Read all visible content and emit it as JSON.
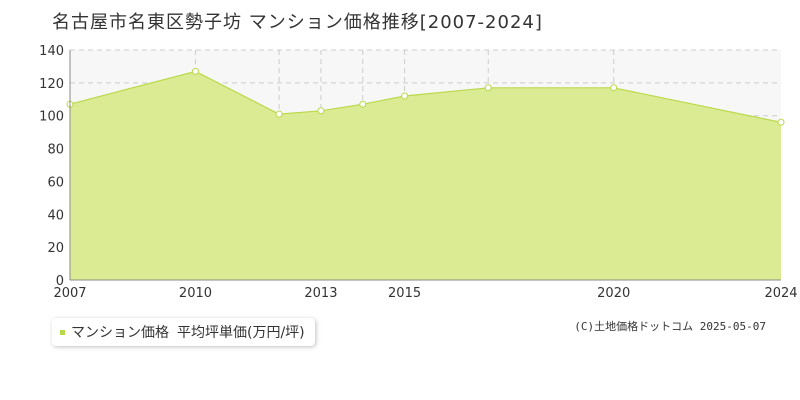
{
  "title": "名古屋市名東区勢子坊 マンション価格推移[2007-2024]",
  "colors": {
    "area_fill": "#dbeb93",
    "line": "#b9d94a",
    "marker_fill": "#ffffff",
    "grid": "#cccccc",
    "plot_bg_upper": "#f7f7f7",
    "axis": "#888888",
    "legend_swatch": "#b9d94a"
  },
  "legend": {
    "series_label": "マンション価格",
    "unit_label": "平均坪単価(万円/坪)"
  },
  "copyright": "(C)土地価格ドットコム 2025-05-07",
  "chart_data": {
    "type": "area",
    "title": "名古屋市名東区勢子坊 マンション価格推移[2007-2024]",
    "x": [
      2007,
      2010,
      2012,
      2013,
      2014,
      2015,
      2017,
      2020,
      2024
    ],
    "series": [
      {
        "name": "マンション価格",
        "values": [
          107,
          127,
          101,
          103,
          107,
          112,
          117,
          117,
          96
        ]
      }
    ],
    "xlim": [
      2007,
      2024
    ],
    "ylim": [
      0,
      140
    ],
    "y_ticks": [
      0,
      20,
      40,
      60,
      80,
      100,
      120,
      140
    ],
    "x_tick_labels": [
      "2007",
      "2010",
      "2013",
      "2015",
      "2020",
      "2024"
    ],
    "x_gridlines": [
      2010,
      2012,
      2013,
      2014,
      2015,
      2017,
      2020
    ],
    "grid": true,
    "xlabel": "",
    "ylabel": ""
  }
}
